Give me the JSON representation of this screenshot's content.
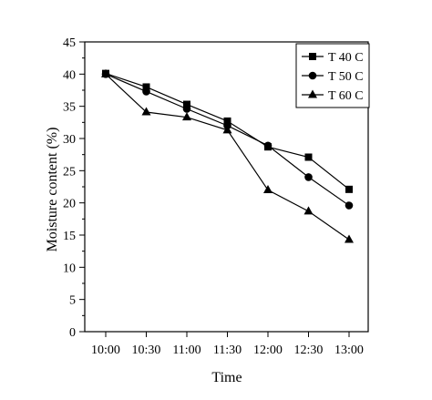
{
  "chart_data": {
    "type": "line",
    "title": "",
    "xlabel": "Time",
    "ylabel": "Moisture content (%)",
    "categories": [
      "10:00",
      "10:30",
      "11:00",
      "11:30",
      "12:00",
      "12:30",
      "13:00"
    ],
    "ylim": [
      0,
      45
    ],
    "yticks": [
      "0",
      "5",
      "10",
      "15",
      "20",
      "25",
      "30",
      "35",
      "40",
      "45"
    ],
    "grid": false,
    "legend_position": "top-right",
    "series": [
      {
        "name": "T 40 C",
        "marker": "square",
        "values": [
          40.1,
          38.0,
          35.3,
          32.7,
          28.7,
          27.1,
          22.1
        ]
      },
      {
        "name": "T 50 C",
        "marker": "circle",
        "values": [
          40.0,
          37.3,
          34.6,
          32.0,
          28.9,
          24.0,
          19.6
        ]
      },
      {
        "name": "T 60 C",
        "marker": "triangle",
        "values": [
          40.0,
          34.1,
          33.3,
          31.3,
          22.0,
          18.7,
          14.3
        ]
      }
    ],
    "colors": {
      "line": "#000000",
      "background": "#ffffff"
    }
  }
}
